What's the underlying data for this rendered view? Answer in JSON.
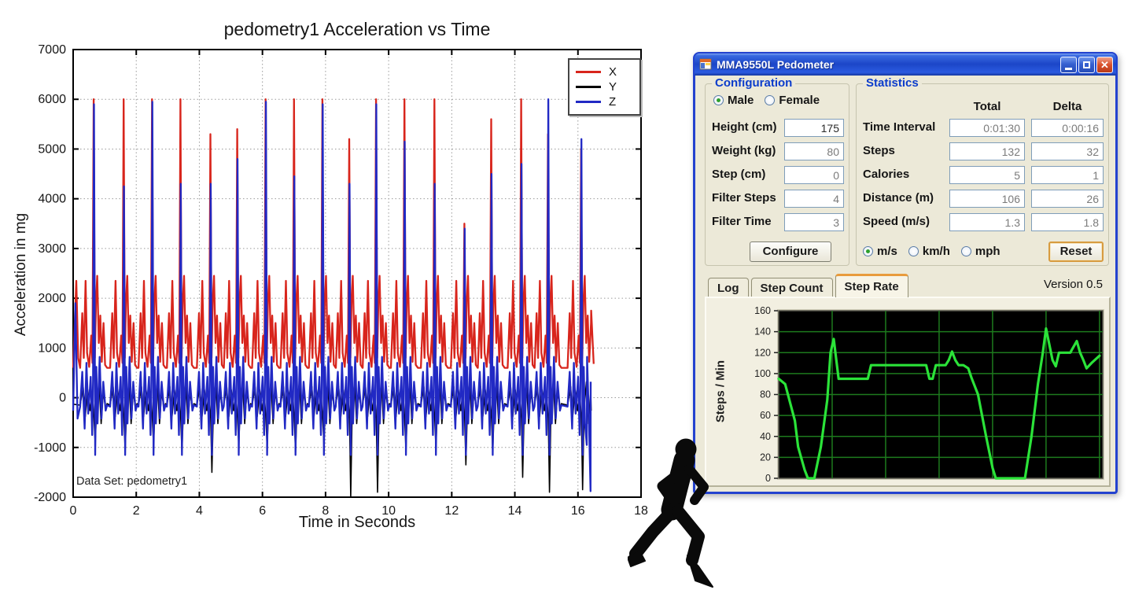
{
  "colors": {
    "series_x": "#d8251c",
    "series_y": "#000000",
    "series_z": "#2129c4",
    "grid_dotted": "#9a9a9a",
    "heading_blue": "#0b3ccc",
    "titlebar_blue": "#2a5ae0",
    "window_border": "#2342cf",
    "accent_orange": "#e89b3c",
    "steprate_line": "#2be339",
    "steprate_grid": "#1d7a1d",
    "steprate_bg": "#000000"
  },
  "window": {
    "title": "MMA9550L Pedometer",
    "buttons": [
      {
        "name": "minimize"
      },
      {
        "name": "maximize"
      },
      {
        "name": "close"
      }
    ],
    "configuration": {
      "heading": "Configuration",
      "gender_options": [
        {
          "label": "Male",
          "selected": true
        },
        {
          "label": "Female",
          "selected": false
        }
      ],
      "fields": [
        {
          "label": "Height (cm)",
          "value": "175",
          "dark": true
        },
        {
          "label": "Weight (kg)",
          "value": "80",
          "dark": false
        },
        {
          "label": "Step (cm)",
          "value": "0",
          "dark": false
        },
        {
          "label": "Filter Steps",
          "value": "4",
          "dark": false
        },
        {
          "label": "Filter Time",
          "value": "3",
          "dark": false
        }
      ],
      "configure_label": "Configure"
    },
    "statistics": {
      "heading": "Statistics",
      "columns": [
        "Total",
        "Delta"
      ],
      "rows": [
        {
          "label": "Time Interval",
          "total": "0:01:30",
          "delta": "0:00:16"
        },
        {
          "label": "Steps",
          "total": "132",
          "delta": "32"
        },
        {
          "label": "Calories",
          "total": "5",
          "delta": "1"
        },
        {
          "label": "Distance (m)",
          "total": "106",
          "delta": "26"
        },
        {
          "label": "Speed (m/s)",
          "total": "1.3",
          "delta": "1.8"
        }
      ],
      "unit_options": [
        {
          "label": "m/s",
          "selected": true
        },
        {
          "label": "km/h",
          "selected": false
        },
        {
          "label": "mph",
          "selected": false
        }
      ],
      "reset_label": "Reset"
    },
    "tabs": [
      {
        "label": "Log",
        "active": false
      },
      {
        "label": "Step Count",
        "active": false
      },
      {
        "label": "Step Rate",
        "active": true
      }
    ],
    "version": "Version 0.5"
  },
  "chart_data": [
    {
      "type": "line",
      "title": "pedometry1 Acceleration vs Time",
      "xlabel": "Time in Seconds",
      "ylabel": "Acceleration in mg",
      "annotation": "Data Set: pedometry1",
      "xlim": [
        0,
        18
      ],
      "ylim": [
        -2000,
        7000
      ],
      "xticks": [
        0,
        2,
        4,
        6,
        8,
        10,
        12,
        14,
        16,
        18
      ],
      "yticks": [
        -2000,
        -1000,
        0,
        1000,
        2000,
        3000,
        4000,
        5000,
        6000,
        7000
      ],
      "grid": true,
      "legend": {
        "position": "top-right",
        "entries": [
          {
            "name": "X",
            "color": "#d8251c"
          },
          {
            "name": "Y",
            "color": "#000000"
          },
          {
            "name": "Z",
            "color": "#2129c4"
          }
        ]
      },
      "step_times": [
        0.65,
        1.6,
        2.5,
        3.4,
        4.35,
        5.2,
        6.1,
        7.0,
        7.9,
        8.75,
        9.6,
        10.5,
        11.45,
        12.4,
        13.25,
        14.2,
        15.05,
        16.1
      ],
      "x_peaks": [
        6000,
        6000,
        6000,
        6000,
        5300,
        5400,
        6000,
        6000,
        6000,
        5200,
        6000,
        6000,
        6000,
        3500,
        5600,
        6000,
        5300,
        5000
      ],
      "z_peaks": [
        5900,
        4250,
        5950,
        4300,
        4300,
        4800,
        5950,
        4450,
        5900,
        4300,
        5900,
        5150,
        4300,
        3400,
        4500,
        4700,
        6000,
        5200
      ],
      "y_dips": [
        -900,
        -1050,
        -950,
        -1100,
        -1500,
        -950,
        -1000,
        -1100,
        -950,
        -2000,
        -1900,
        -1050,
        -1000,
        -1350,
        -1100,
        -1600,
        -1900,
        -1850
      ],
      "head": {
        "x": [
          [
            0,
            600
          ],
          [
            0.1,
            2350
          ],
          [
            0.16,
            800
          ]
        ],
        "y": [
          [
            0,
            -130
          ]
        ],
        "z": [
          [
            0,
            -260
          ],
          [
            0.07,
            1900
          ],
          [
            0.14,
            -420
          ]
        ]
      },
      "tail": {
        "x": [
          [
            16.42,
            1750
          ],
          [
            16.5,
            680
          ]
        ],
        "y": [
          [
            16.42,
            -260
          ]
        ],
        "z": [
          [
            16.28,
            -950
          ],
          [
            16.4,
            -1880
          ]
        ]
      },
      "templates": {
        "x": [
          [
            -0.45,
            600
          ],
          [
            -0.38,
            1700
          ],
          [
            -0.33,
            800
          ],
          [
            -0.27,
            2350
          ],
          [
            -0.22,
            900
          ],
          [
            -0.15,
            620
          ],
          [
            -0.08,
            1250
          ],
          [
            -0.04,
            700
          ],
          [
            0,
            null
          ],
          [
            0.04,
            800
          ],
          [
            0.08,
            1950
          ],
          [
            0.12,
            2450
          ],
          [
            0.17,
            1100
          ],
          [
            0.22,
            1650
          ],
          [
            0.27,
            720
          ],
          [
            0.33,
            1500
          ],
          [
            0.38,
            660
          ],
          [
            0.45,
            600
          ]
        ],
        "z": [
          [
            -0.45,
            -180
          ],
          [
            -0.38,
            520
          ],
          [
            -0.3,
            -620
          ],
          [
            -0.24,
            700
          ],
          [
            -0.18,
            -320
          ],
          [
            -0.1,
            420
          ],
          [
            -0.05,
            -750
          ],
          [
            -0.02,
            350
          ],
          [
            0.01,
            null
          ],
          [
            0.05,
            -1150
          ],
          [
            0.09,
            620
          ],
          [
            0.13,
            -520
          ],
          [
            0.2,
            820
          ],
          [
            0.26,
            -420
          ],
          [
            0.32,
            320
          ],
          [
            0.4,
            -260
          ],
          [
            0.45,
            -150
          ]
        ],
        "y": [
          [
            -0.45,
            -150
          ],
          [
            -0.35,
            220
          ],
          [
            -0.28,
            -380
          ],
          [
            -0.2,
            160
          ],
          [
            -0.12,
            -260
          ],
          [
            -0.05,
            120
          ],
          [
            0.01,
            -420
          ],
          [
            0.05,
            null
          ],
          [
            0.1,
            -220
          ],
          [
            0.18,
            320
          ],
          [
            0.25,
            -520
          ],
          [
            0.32,
            120
          ],
          [
            0.4,
            -220
          ],
          [
            0.45,
            -120
          ]
        ]
      }
    },
    {
      "type": "line",
      "title": "Step Rate",
      "ylabel": "Steps / Min",
      "ylim": [
        0,
        160
      ],
      "yticks": [
        0,
        20,
        40,
        60,
        80,
        100,
        120,
        140,
        160
      ],
      "x_gridlines_pct": [
        16.5,
        33,
        49.5,
        66,
        82.5,
        99
      ],
      "x": [
        0,
        2,
        5,
        6,
        8,
        9,
        11,
        13,
        15,
        16,
        17,
        17.5,
        18.5,
        27.5,
        28.5,
        45.5,
        46.5,
        47.5,
        48.5,
        51.5,
        52.5,
        53.5,
        54.5,
        55.5,
        57,
        58.5,
        59.5,
        60.5,
        61.5,
        64,
        66,
        67,
        76,
        78,
        80,
        81.5,
        82.5,
        83.5,
        84.5,
        85.5,
        86.5,
        88,
        90,
        90.5,
        92,
        93,
        94,
        95,
        96.5,
        99
      ],
      "y": [
        95,
        90,
        55,
        30,
        8,
        0,
        0,
        30,
        75,
        120,
        133,
        120,
        95,
        95,
        108,
        108,
        95,
        95,
        108,
        108,
        113,
        121,
        113,
        108,
        108,
        105,
        96,
        88,
        80,
        40,
        10,
        0,
        0,
        40,
        90,
        120,
        143,
        128,
        113,
        107,
        120,
        120,
        120,
        123,
        131,
        120,
        113,
        105,
        110,
        117
      ]
    }
  ]
}
